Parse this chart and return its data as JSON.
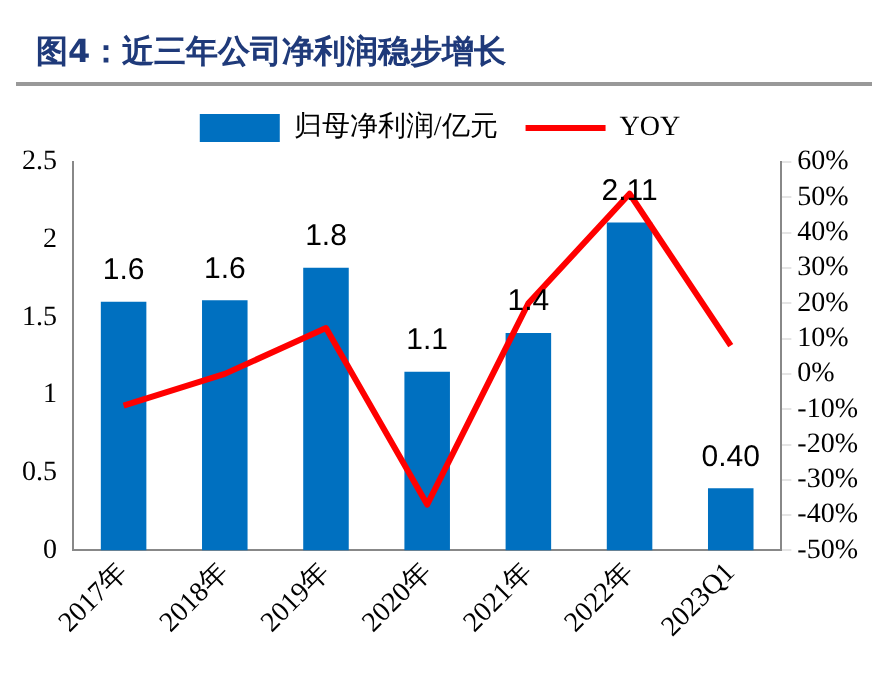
{
  "chart_data": {
    "type": "bar",
    "title": "图4：近三年公司净利润稳步增长",
    "categories": [
      "2017年",
      "2018年",
      "2019年",
      "2020年",
      "2021年",
      "2022年",
      "2023Q1"
    ],
    "series": [
      {
        "name": "归母净利润/亿元",
        "color": "#0070c0",
        "values": [
          1.6,
          1.61,
          1.82,
          1.15,
          1.4,
          2.11,
          0.4
        ],
        "value_labels": [
          "1.6",
          "1.6",
          "1.8",
          "1.1",
          "1.4",
          "2.11",
          "0.40"
        ]
      },
      {
        "name": "YOY",
        "type": "line",
        "axis": "y2",
        "color": "#ff0000",
        "values": [
          -9,
          0,
          13,
          -37,
          20,
          51,
          8
        ]
      }
    ],
    "ylim": [
      0,
      2.5
    ],
    "yticks": [
      0,
      0.5,
      1,
      1.5,
      2,
      2.5
    ],
    "y2lim": [
      -50,
      60
    ],
    "y2ticks": [
      {
        "value": -50,
        "label": "-50%"
      },
      {
        "value": -40,
        "label": "-40%"
      },
      {
        "value": -30,
        "label": "-30%"
      },
      {
        "value": -20,
        "label": "-20%"
      },
      {
        "value": -10,
        "label": "-10%"
      },
      {
        "value": 0,
        "label": "0%"
      },
      {
        "value": 10,
        "label": "10%"
      },
      {
        "value": 20,
        "label": "20%"
      },
      {
        "value": 30,
        "label": "30%"
      },
      {
        "value": 40,
        "label": "40%"
      },
      {
        "value": 50,
        "label": "50%"
      },
      {
        "value": 60,
        "label": "60%"
      }
    ],
    "legend": "top",
    "marker": "none",
    "line_style": "solid"
  }
}
